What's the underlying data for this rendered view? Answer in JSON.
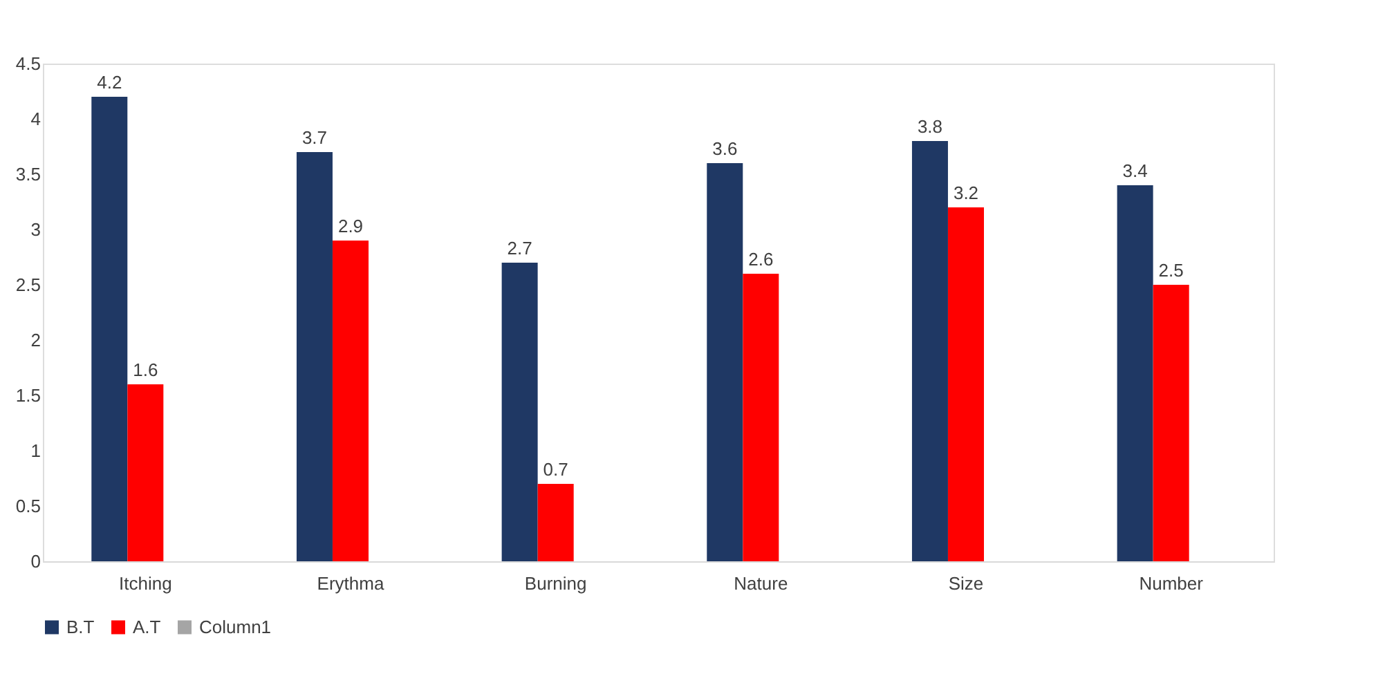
{
  "chart_data": {
    "type": "bar",
    "categories": [
      "Itching",
      "Erythma",
      "Burning",
      "Nature",
      "Size",
      "Number"
    ],
    "series": [
      {
        "name": "B.T",
        "color": "#1f3864",
        "values": [
          4.2,
          3.7,
          2.7,
          3.6,
          3.8,
          3.4
        ]
      },
      {
        "name": "A.T",
        "color": "#ff0000",
        "values": [
          1.6,
          2.9,
          0.7,
          2.6,
          3.2,
          2.5
        ]
      },
      {
        "name": "Column1",
        "color": "#a5a5a5",
        "values": [
          null,
          null,
          null,
          null,
          null,
          null
        ]
      }
    ],
    "ylim": [
      0,
      4.5
    ],
    "yticks": [
      0,
      0.5,
      1,
      1.5,
      2,
      2.5,
      3,
      3.5,
      4,
      4.5
    ],
    "grid": false,
    "legend": "bottom",
    "data_labels": true
  }
}
